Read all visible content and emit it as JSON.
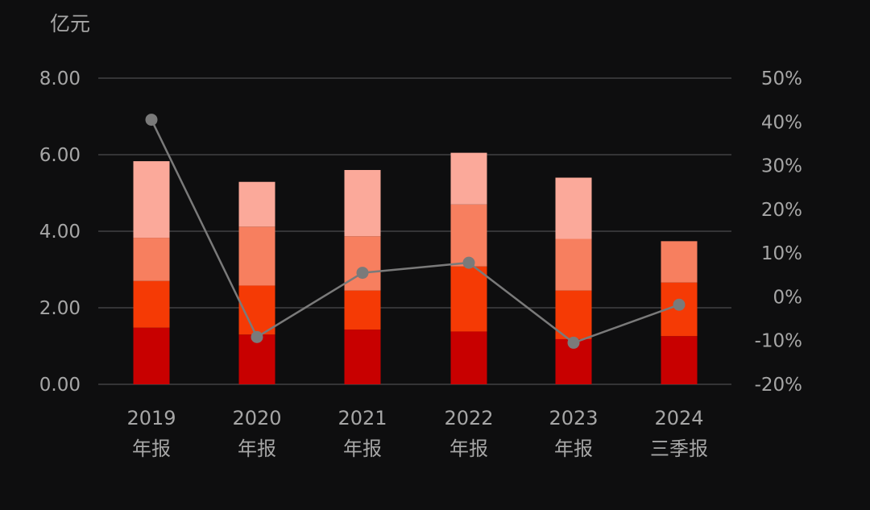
{
  "chart_data": {
    "type": "bar",
    "stacked": true,
    "unit_left": "亿元",
    "categories": [
      [
        "2019",
        "年报"
      ],
      [
        "2020",
        "年报"
      ],
      [
        "2021",
        "年报"
      ],
      [
        "2022",
        "年报"
      ],
      [
        "2023",
        "年报"
      ],
      [
        "2024",
        "三季报"
      ]
    ],
    "y_left": {
      "min": 0,
      "max": 8,
      "ticks": [
        "0.00",
        "2.00",
        "4.00",
        "6.00",
        "8.00"
      ]
    },
    "y_right": {
      "min": -20,
      "max": 50,
      "ticks": [
        "-20%",
        "-10%",
        "0%",
        "10%",
        "20%",
        "30%",
        "40%",
        "50%"
      ]
    },
    "series": [
      {
        "color": "#c80000",
        "values": [
          1.48,
          1.3,
          1.43,
          1.38,
          1.18,
          1.26
        ]
      },
      {
        "color": "#f53a05",
        "values": [
          1.22,
          1.28,
          1.02,
          1.7,
          1.27,
          1.4
        ]
      },
      {
        "color": "#f77f5f",
        "values": [
          1.13,
          1.54,
          1.42,
          1.62,
          1.35,
          1.08
        ]
      },
      {
        "color": "#fba99a",
        "values": [
          2.0,
          1.17,
          1.73,
          1.35,
          1.6,
          0
        ]
      }
    ],
    "line_series": {
      "color": "#7a7a7a",
      "axis": "right",
      "values": [
        40.5,
        -9.2,
        5.5,
        7.8,
        -10.5,
        -1.8
      ]
    },
    "grid": true,
    "legend": "none"
  }
}
